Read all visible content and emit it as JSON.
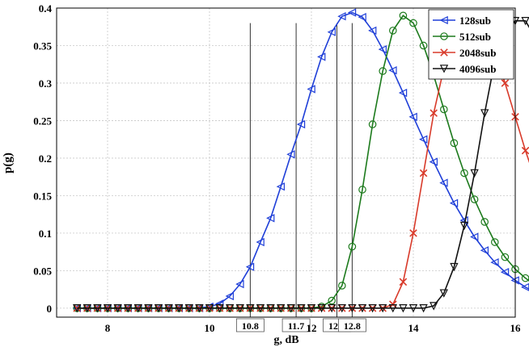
{
  "chart_data": {
    "type": "line",
    "xlabel": "g, dB",
    "ylabel": "p(g)",
    "xlim": [
      7,
      16
    ],
    "ylim": [
      -0.012,
      0.4
    ],
    "xticks": [
      "8",
      "10",
      "12",
      "14",
      "16"
    ],
    "yticks": [
      "0",
      "0.05",
      "0.1",
      "0.15",
      "0.2",
      "0.25",
      "0.3",
      "0.35",
      "0.4"
    ],
    "grid": true,
    "legend_position": "top-right",
    "x_start": 7.4,
    "x_step": 0.2,
    "series": [
      {
        "name": "128sub",
        "color": "#1f3fd8",
        "marker": "triangle-left",
        "values": [
          0,
          0,
          0,
          0,
          0,
          0,
          0,
          0,
          0,
          0,
          0,
          0,
          0,
          0.002,
          0.006,
          0.016,
          0.032,
          0.055,
          0.088,
          0.12,
          0.162,
          0.205,
          0.245,
          0.292,
          0.335,
          0.368,
          0.389,
          0.394,
          0.388,
          0.37,
          0.345,
          0.317,
          0.287,
          0.255,
          0.225,
          0.195,
          0.167,
          0.14,
          0.117,
          0.095,
          0.077,
          0.061,
          0.048,
          0.037,
          0.028,
          0.021,
          0.016,
          0.012,
          0.009,
          0.006,
          0.004,
          0.003,
          0.002,
          0.001,
          0.001,
          0.0005,
          0,
          0,
          0,
          0,
          0,
          0,
          0,
          0,
          0,
          0,
          0
        ]
      },
      {
        "name": "512sub",
        "color": "#1c7a1c",
        "marker": "circle",
        "values": [
          0,
          0,
          0,
          0,
          0,
          0,
          0,
          0,
          0,
          0,
          0,
          0,
          0,
          0,
          0,
          0,
          0,
          0,
          0,
          0,
          0,
          0,
          0,
          0,
          0.002,
          0.01,
          0.03,
          0.082,
          0.158,
          0.245,
          0.316,
          0.37,
          0.39,
          0.38,
          0.35,
          0.31,
          0.265,
          0.22,
          0.18,
          0.145,
          0.115,
          0.088,
          0.068,
          0.052,
          0.04,
          0.03,
          0.022,
          0.016,
          0.012,
          0.008,
          0.006,
          0.004,
          0.003,
          0.002,
          0.001,
          0.0005,
          0,
          0,
          0,
          0,
          0,
          0,
          0,
          0,
          0,
          0,
          0
        ]
      },
      {
        "name": "2048sub",
        "color": "#d83a2a",
        "marker": "x",
        "values": [
          0,
          0,
          0,
          0,
          0,
          0,
          0,
          0,
          0,
          0,
          0,
          0,
          0,
          0,
          0,
          0,
          0,
          0,
          0,
          0,
          0,
          0,
          0,
          0,
          0,
          0,
          0,
          0,
          0,
          0,
          0,
          0.005,
          0.035,
          0.1,
          0.18,
          0.26,
          0.32,
          0.36,
          0.38,
          0.385,
          0.37,
          0.34,
          0.3,
          0.255,
          0.21,
          0.17,
          0.135,
          0.105,
          0.08,
          0.06,
          0.045,
          0.033,
          0.024,
          0.017,
          0.012,
          0.008,
          0.005,
          0.003,
          0.002,
          0.001,
          0.0005,
          0,
          0,
          0,
          0,
          0,
          0
        ]
      },
      {
        "name": "4096sub",
        "color": "#111111",
        "marker": "triangle-down",
        "values": [
          0,
          0,
          0,
          0,
          0,
          0,
          0,
          0,
          0,
          0,
          0,
          0,
          0,
          0,
          0,
          0,
          0,
          0,
          0,
          0,
          0,
          0,
          0,
          0,
          0,
          0,
          0,
          0,
          0,
          0,
          0,
          0,
          0,
          0,
          0,
          0.003,
          0.02,
          0.055,
          0.11,
          0.18,
          0.26,
          0.33,
          0.37,
          0.383,
          0.383,
          0.36,
          0.325,
          0.28,
          0.235,
          0.19,
          0.15,
          0.115,
          0.085,
          0.062,
          0.045,
          0.032,
          0.022,
          0.015,
          0.01,
          0.006,
          0.004,
          0.002,
          0.001,
          0.0005,
          0,
          0,
          0
        ]
      }
    ],
    "annotations": [
      {
        "label": "10.8",
        "x": 10.8
      },
      {
        "label": "11.7",
        "x": 11.7
      },
      {
        "label": "12.5",
        "x": 12.5
      },
      {
        "label": "12.8",
        "x": 12.8
      }
    ]
  }
}
